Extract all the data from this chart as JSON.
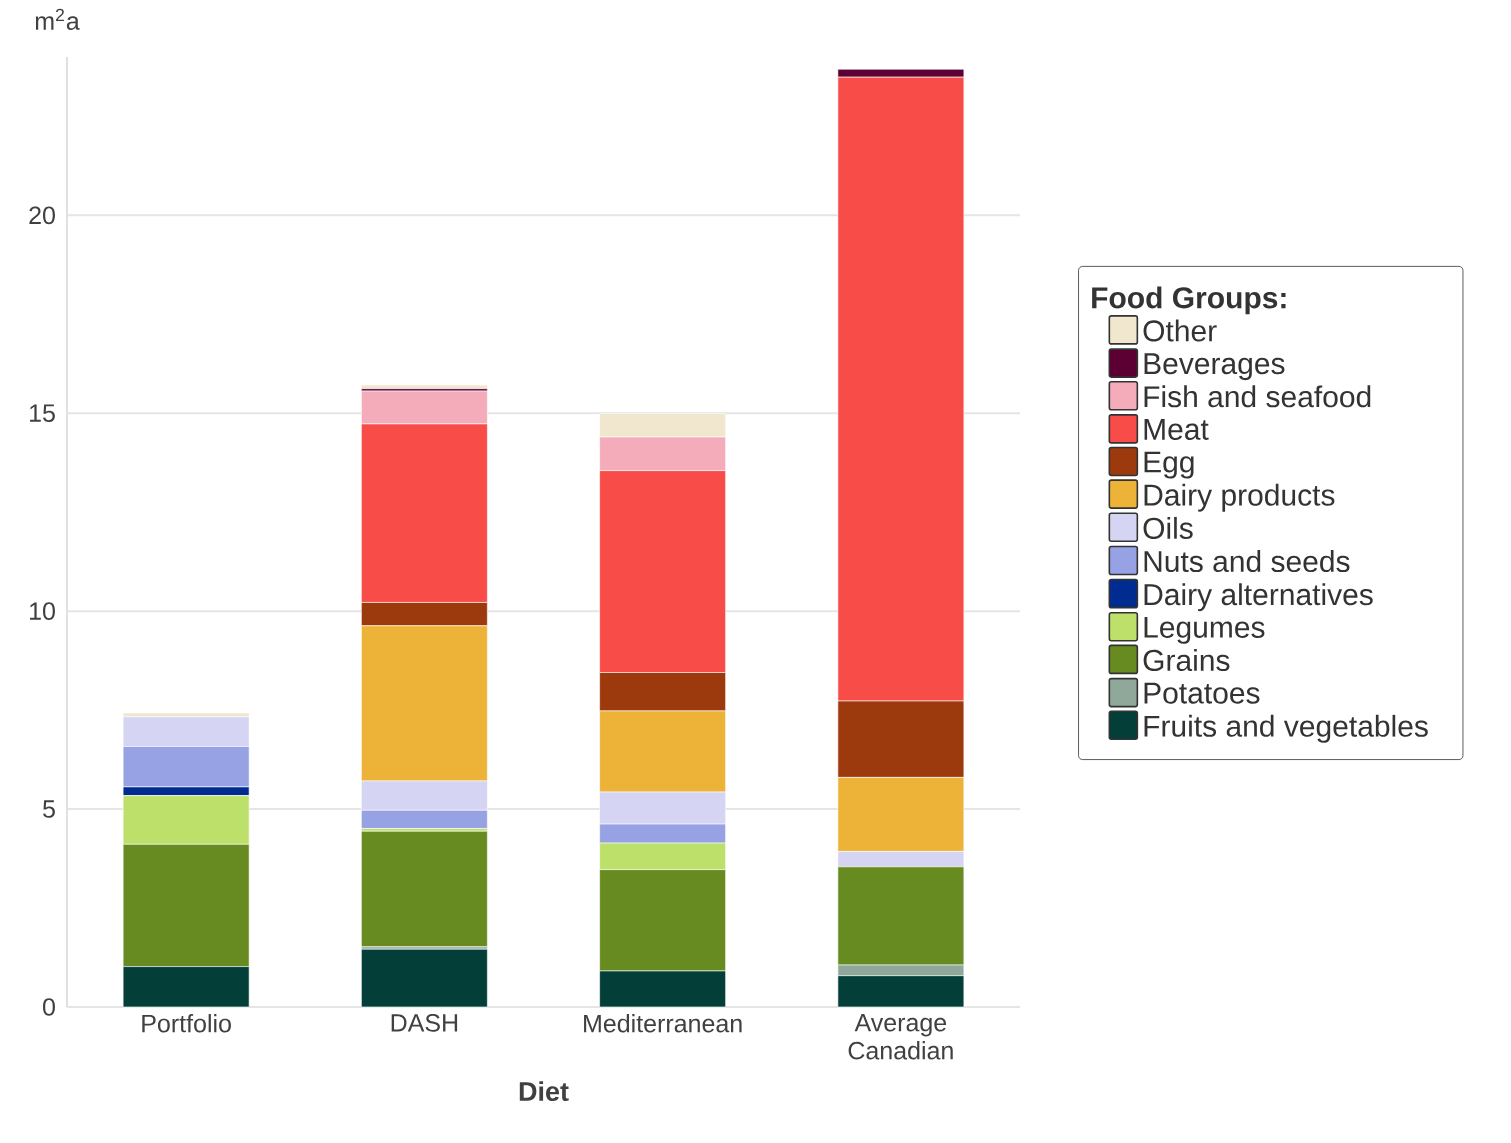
{
  "chart_data": {
    "type": "bar",
    "stacked": true,
    "xlabel": "Diet",
    "ylabel": "m$^{2}$a",
    "legend_title": "Food Groups:",
    "legend": "right",
    "grid": "y",
    "categories": [
      "Portfolio",
      "DASH",
      "Mediterranean",
      "Average Canadian"
    ],
    "ylim": [
      0,
      24
    ],
    "yticks": [
      0,
      5,
      10,
      15,
      20
    ],
    "series": [
      {
        "name": "Fruits and vegetables",
        "color": "#033f38",
        "values": [
          1.02,
          1.46,
          0.91,
          0.79
        ]
      },
      {
        "name": "Potatoes",
        "color": "#8fa89a",
        "values": [
          0,
          0.06,
          0,
          0.27
        ]
      },
      {
        "name": "Grains",
        "color": "#678b20",
        "values": [
          3.09,
          2.92,
          2.56,
          2.48
        ]
      },
      {
        "name": "Legumes",
        "color": "#bde06a",
        "values": [
          1.23,
          0.07,
          0.67,
          0
        ]
      },
      {
        "name": "Dairy alternatives",
        "color": "#002c91",
        "values": [
          0.22,
          0,
          0,
          0
        ]
      },
      {
        "name": "Nuts and seeds",
        "color": "#96a2e3",
        "values": [
          1.02,
          0.46,
          0.48,
          0
        ]
      },
      {
        "name": "Oils",
        "color": "#d5d4f2",
        "values": [
          0.75,
          0.74,
          0.81,
          0.39
        ]
      },
      {
        "name": "Dairy products",
        "color": "#ecb338",
        "values": [
          0,
          3.92,
          2.05,
          1.87
        ]
      },
      {
        "name": "Egg",
        "color": "#9c390d",
        "values": [
          0,
          0.59,
          0.97,
          1.93
        ]
      },
      {
        "name": "Meat",
        "color": "#f74c47",
        "values": [
          0,
          4.51,
          5.1,
          15.76
        ]
      },
      {
        "name": "Fish and seafood",
        "color": "#f4acbb",
        "values": [
          0,
          0.83,
          0.85,
          0
        ]
      },
      {
        "name": "Beverages",
        "color": "#5c0033",
        "values": [
          0,
          0.06,
          0,
          0.2
        ]
      },
      {
        "name": "Other",
        "color": "#f1e6ce",
        "values": [
          0.1,
          0.09,
          0.59,
          0
        ]
      }
    ]
  }
}
